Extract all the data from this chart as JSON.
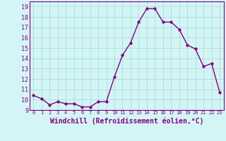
{
  "x": [
    0,
    1,
    2,
    3,
    4,
    5,
    6,
    7,
    8,
    9,
    10,
    11,
    12,
    13,
    14,
    15,
    16,
    17,
    18,
    19,
    20,
    21,
    22,
    23
  ],
  "y": [
    10.4,
    10.1,
    9.5,
    9.8,
    9.6,
    9.6,
    9.3,
    9.3,
    9.8,
    9.8,
    12.2,
    14.3,
    15.5,
    17.5,
    18.8,
    18.8,
    17.5,
    17.5,
    16.8,
    15.3,
    14.9,
    13.2,
    13.5,
    10.7
  ],
  "line_color": "#800080",
  "marker": "o",
  "markersize": 2.5,
  "linewidth": 1,
  "xlabel": "Windchill (Refroidissement éolien,°C)",
  "xlabel_fontsize": 7,
  "xlim": [
    -0.5,
    23.5
  ],
  "ylim": [
    9.0,
    19.5
  ],
  "yticks": [
    9,
    10,
    11,
    12,
    13,
    14,
    15,
    16,
    17,
    18,
    19
  ],
  "xticks": [
    0,
    1,
    2,
    3,
    4,
    5,
    6,
    7,
    8,
    9,
    10,
    11,
    12,
    13,
    14,
    15,
    16,
    17,
    18,
    19,
    20,
    21,
    22,
    23
  ],
  "background_color": "#d4f5f5",
  "grid_color": "#aadddd",
  "tick_fontsize": 6,
  "spine_color": "#800080"
}
